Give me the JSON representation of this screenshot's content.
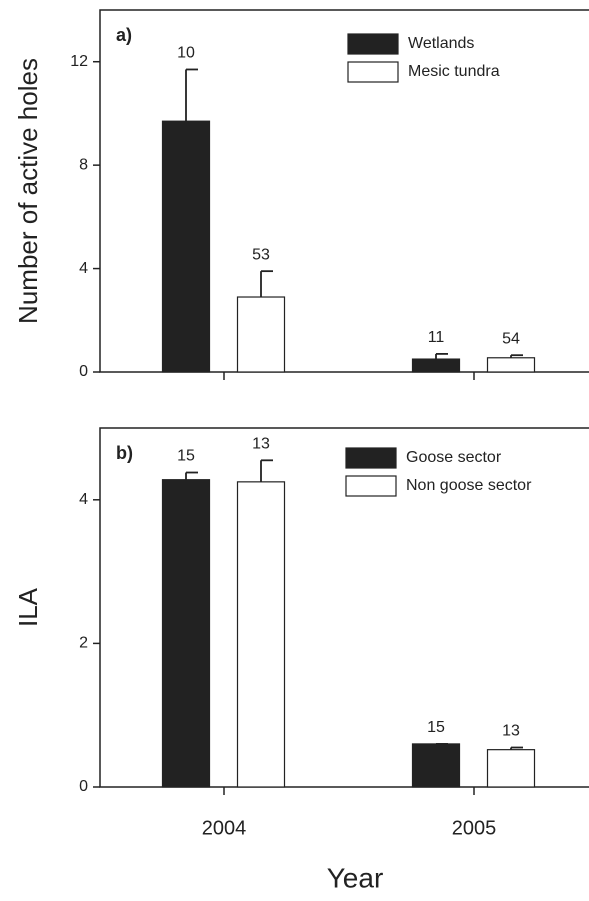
{
  "chart_data": [
    {
      "type": "bar",
      "panel_label": "a)",
      "y_label": "Number of active holes",
      "ylim": [
        0,
        14
      ],
      "yticks": [
        0,
        4,
        8,
        12
      ],
      "series": [
        {
          "name": "Wetlands",
          "color": "#222222",
          "values": [
            9.7,
            0.5
          ],
          "errors": [
            2.0,
            0.2
          ],
          "n": [
            10,
            11
          ]
        },
        {
          "name": "Mesic tundra",
          "color": "#ffffff",
          "values": [
            2.9,
            0.55
          ],
          "errors": [
            1.0,
            0.1
          ],
          "n": [
            53,
            54
          ]
        }
      ]
    },
    {
      "type": "bar",
      "panel_label": "b)",
      "y_label": "ILA",
      "x_label": "Year",
      "categories": [
        "2004",
        "2005"
      ],
      "ylim": [
        0,
        5
      ],
      "yticks": [
        0,
        2,
        4
      ],
      "series": [
        {
          "name": "Goose sector",
          "color": "#222222",
          "values": [
            4.28,
            0.6
          ],
          "errors": [
            0.1,
            0.0
          ],
          "n": [
            15,
            15
          ]
        },
        {
          "name": "Non goose sector",
          "color": "#ffffff",
          "values": [
            4.25,
            0.52
          ],
          "errors": [
            0.3,
            0.03
          ],
          "n": [
            13,
            13
          ]
        }
      ]
    }
  ]
}
